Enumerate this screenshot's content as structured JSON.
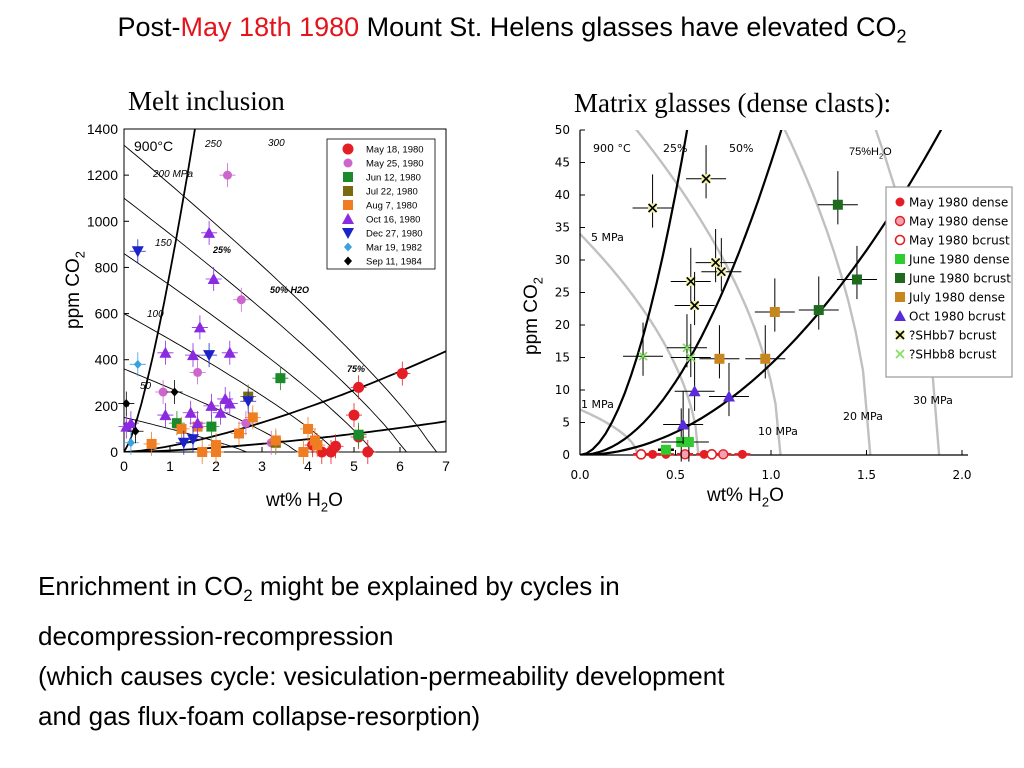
{
  "slide": {
    "title_prefix": "Post-",
    "title_highlight": "May 18th 1980",
    "title_main": " Mount St. Helens glasses have elevated CO",
    "title_sub": "2",
    "highlight_color": "#e3141b",
    "body_line1_a": "Enrichment in CO",
    "body_line1_sub": "2",
    "body_line1_b": " might be explained by cycles in",
    "body_line2": "decompression-recompression",
    "body_line3": "(which causes cycle: vesiculation-permeability development",
    "body_line4": "and gas flux-foam collapse-resorption)"
  },
  "chart_data": [
    {
      "type": "scatter",
      "panel_title": "Melt inclusion",
      "xlabel": "wt% H2O",
      "ylabel": "ppm CO2",
      "xlim": [
        0,
        7
      ],
      "ylim": [
        0,
        1400
      ],
      "x_ticks": [
        "0",
        "1",
        "2",
        "3",
        "4",
        "5",
        "6",
        "7"
      ],
      "y_ticks": [
        "0",
        "200",
        "400",
        "600",
        "800",
        "1000",
        "1200",
        "1400"
      ],
      "temperature_label": "900°C",
      "isobar_labels": [
        "50",
        "100",
        "150",
        "200 MPa",
        "250",
        "300"
      ],
      "isopleth_labels": [
        "25%",
        "50% H2O",
        "75%"
      ],
      "legend_position": "top-right",
      "series": [
        {
          "name": "May 18, 1980",
          "color": "#e31e24",
          "marker": "circle-lg",
          "points": [
            [
              4.3,
              0
            ],
            [
              4.5,
              0
            ],
            [
              4.6,
              25
            ],
            [
              4.1,
              30
            ],
            [
              5.1,
              65
            ],
            [
              5.3,
              0
            ],
            [
              5.0,
              160
            ],
            [
              5.1,
              280
            ],
            [
              6.05,
              340
            ]
          ]
        },
        {
          "name": "May 25, 1980",
          "color": "#cc66cc",
          "marker": "circle",
          "points": [
            [
              2.25,
              1200
            ],
            [
              2.55,
              660
            ],
            [
              0.85,
              260
            ],
            [
              1.6,
              345
            ],
            [
              2.65,
              125
            ],
            [
              3.2,
              40
            ]
          ]
        },
        {
          "name": "Jun 12, 1980",
          "color": "#1a8a2a",
          "marker": "square",
          "points": [
            [
              1.15,
              125
            ],
            [
              1.9,
              110
            ],
            [
              3.4,
              320
            ],
            [
              5.1,
              75
            ]
          ]
        },
        {
          "name": "Jul 22, 1980",
          "color": "#7a6a10",
          "marker": "square",
          "points": [
            [
              2.7,
              240
            ],
            [
              3.3,
              40
            ]
          ]
        },
        {
          "name": "Aug 7, 1980",
          "color": "#ef7d22",
          "marker": "square",
          "points": [
            [
              0.6,
              35
            ],
            [
              1.25,
              100
            ],
            [
              1.6,
              110
            ],
            [
              1.7,
              0
            ],
            [
              2.0,
              0
            ],
            [
              2.0,
              30
            ],
            [
              2.5,
              80
            ],
            [
              2.8,
              150
            ],
            [
              3.3,
              50
            ],
            [
              3.9,
              0
            ],
            [
              4.0,
              100
            ],
            [
              4.2,
              30
            ],
            [
              4.15,
              50
            ]
          ]
        },
        {
          "name": "Oct 16, 1980",
          "color": "#8a2be2",
          "marker": "triangle-up",
          "points": [
            [
              1.85,
              950
            ],
            [
              1.95,
              750
            ],
            [
              1.65,
              540
            ],
            [
              0.9,
              430
            ],
            [
              1.5,
              420
            ],
            [
              2.3,
              430
            ],
            [
              0.05,
              110
            ],
            [
              0.15,
              125
            ],
            [
              0.9,
              160
            ],
            [
              1.45,
              170
            ],
            [
              1.9,
              200
            ],
            [
              2.2,
              230
            ],
            [
              2.1,
              170
            ],
            [
              2.3,
              210
            ],
            [
              1.6,
              125
            ]
          ]
        },
        {
          "name": "Dec 27, 1980",
          "color": "#1c24c8",
          "marker": "triangle-down",
          "points": [
            [
              0.3,
              870
            ],
            [
              1.85,
              420
            ],
            [
              2.7,
              220
            ],
            [
              1.3,
              40
            ],
            [
              1.5,
              55
            ]
          ]
        },
        {
          "name": "Mar 19, 1982",
          "color": "#3aa0e0",
          "marker": "diamond",
          "points": [
            [
              0.3,
              380
            ],
            [
              0.15,
              40
            ]
          ]
        },
        {
          "name": "Sep 11, 1984",
          "color": "#000000",
          "marker": "diamond",
          "points": [
            [
              0.05,
              210
            ],
            [
              0.25,
              90
            ],
            [
              1.1,
              260
            ]
          ]
        }
      ]
    },
    {
      "type": "scatter",
      "panel_title": "Matrix glasses (dense clasts):",
      "xlabel": "wt% H2O",
      "ylabel": "ppm CO2",
      "xlim": [
        0,
        2
      ],
      "ylim": [
        0,
        50
      ],
      "x_ticks": [
        "0.0",
        "0.5",
        "1.0",
        "1.5",
        "2.0"
      ],
      "y_ticks": [
        "0",
        "5",
        "10",
        "15",
        "20",
        "25",
        "30",
        "35",
        "40",
        "45",
        "50"
      ],
      "temperature_label": "900 °C",
      "isobar_labels": [
        "1 MPa",
        "5 MPa",
        "10 MPa",
        "20 MPa",
        "30 MPa"
      ],
      "isopleth_labels": [
        "25%",
        "50%",
        "75%H2O"
      ],
      "legend_position": "right",
      "series": [
        {
          "name": "May 1980 dense",
          "color": "#e31e24",
          "marker": "circle",
          "points": [
            [
              0.32,
              0.1
            ],
            [
              0.38,
              0.1
            ],
            [
              0.45,
              0.1
            ],
            [
              0.55,
              0.1
            ],
            [
              0.65,
              0.1
            ],
            [
              0.75,
              0.1
            ],
            [
              0.85,
              0.1
            ]
          ]
        },
        {
          "name": "May 1980 dense",
          "color": "#f4a0b0",
          "marker": "circle-outline-red",
          "points": [
            [
              0.55,
              0.1
            ],
            [
              0.75,
              0.1
            ]
          ]
        },
        {
          "name": "May 1980 bcrust",
          "color": "#e31e24",
          "marker": "open-circle",
          "points": [
            [
              0.32,
              0.1
            ],
            [
              0.69,
              0.1
            ]
          ]
        },
        {
          "name": "June 1980 dense",
          "color": "#2ecc2e",
          "marker": "square",
          "points": [
            [
              0.45,
              0.8
            ],
            [
              0.53,
              2.0
            ],
            [
              0.57,
              2.0
            ]
          ]
        },
        {
          "name": "June 1980 bcrust",
          "color": "#1e6b1e",
          "marker": "square",
          "points": [
            [
              1.35,
              38.5
            ],
            [
              1.45,
              27.0
            ],
            [
              1.25,
              22.3
            ]
          ]
        },
        {
          "name": "July 1980 dense",
          "color": "#c8861e",
          "marker": "square",
          "points": [
            [
              1.02,
              22.0
            ],
            [
              0.73,
              14.8
            ],
            [
              0.97,
              14.8
            ]
          ]
        },
        {
          "name": "Oct 1980 bcrust",
          "color": "#5a2bd8",
          "marker": "triangle-up",
          "points": [
            [
              0.6,
              9.8
            ],
            [
              0.78,
              9.0
            ],
            [
              0.54,
              4.7
            ]
          ]
        },
        {
          "name": "?SHbb7 bcrust",
          "color": "#000000",
          "marker": "x",
          "points": [
            [
              0.38,
              38.0
            ],
            [
              0.66,
              42.5
            ],
            [
              0.58,
              26.7
            ],
            [
              0.6,
              23.0
            ],
            [
              0.71,
              29.6
            ],
            [
              0.74,
              28.2
            ]
          ]
        },
        {
          "name": "?SHbb8 bcrust",
          "color": "#7ee05a",
          "marker": "x-green",
          "points": [
            [
              0.33,
              15.2
            ],
            [
              0.56,
              16.5
            ],
            [
              0.58,
              15.0
            ]
          ]
        }
      ]
    }
  ]
}
